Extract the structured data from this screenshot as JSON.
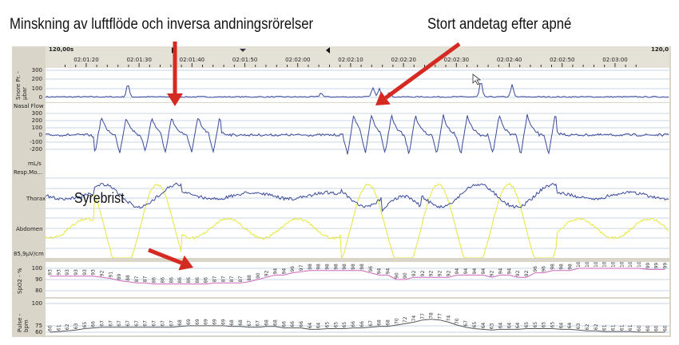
{
  "annotations": {
    "left_title": "Minskning av luftflöde och inversa andningsrörelser",
    "right_title": "Stort andetag efter apné",
    "syrebrist": "Syrebrist"
  },
  "timeline": {
    "window_left": "120,00s",
    "window_right": "120,0",
    "ticks": [
      "02:01:20",
      "02:01:30",
      "02:01:40",
      "02:01:50",
      "02:02:00",
      "02:02:10",
      "02:02:20",
      "02:02:30",
      "02:02:40",
      "02:02:50",
      "02:03:00"
    ]
  },
  "channels": {
    "snore": {
      "label": "Snore Pr. - µbar",
      "axis": [
        "300",
        "200",
        "100",
        "0"
      ]
    },
    "nasal": {
      "label": "Nasal Flow",
      "unit": "mL/s",
      "axis": [
        "300",
        "200",
        "100",
        "0",
        "-100",
        "-200"
      ]
    },
    "resp": {
      "label": "Resp.Mo...",
      "thorax": "Thorax",
      "abdomen": "Abdomen",
      "scale": "85,9µV/cm"
    },
    "spo2": {
      "label": "SpO2 - %",
      "axis": [
        "100",
        "90",
        "80"
      ],
      "values": [
        93,
        93,
        93,
        93,
        93,
        93,
        92,
        91,
        89,
        88,
        87,
        87,
        86,
        86,
        86,
        86,
        86,
        86,
        86,
        87,
        87,
        87,
        87,
        88,
        90,
        92,
        94,
        94,
        96,
        97,
        98,
        98,
        98,
        98,
        98,
        98,
        98,
        96,
        94,
        94,
        90,
        90,
        92,
        92,
        92,
        92,
        92,
        94,
        94,
        94,
        94,
        92,
        94,
        94,
        92,
        92,
        96,
        96,
        98,
        98,
        98,
        100,
        100,
        100,
        100,
        100,
        100,
        100,
        100,
        99,
        99,
        99
      ]
    },
    "pulse": {
      "label": "Pulse - bpm",
      "axis": [
        "100",
        "75",
        "60"
      ],
      "values": [
        60,
        61,
        62,
        63,
        65,
        66,
        67,
        67,
        67,
        67,
        67,
        67,
        67,
        67,
        67,
        68,
        69,
        69,
        69,
        69,
        69,
        68,
        68,
        67,
        67,
        68,
        68,
        66,
        66,
        66,
        64,
        64,
        65,
        65,
        65,
        66,
        66,
        67,
        68,
        68,
        70,
        72,
        74,
        77,
        78,
        77,
        74,
        70,
        67,
        65,
        64,
        63,
        64,
        64,
        64,
        65,
        65,
        65,
        65,
        64,
        64,
        63,
        62,
        62,
        61,
        61,
        61,
        61,
        60,
        60,
        60,
        60
      ]
    }
  },
  "colors": {
    "trace": "#3a4a9a",
    "yellow": "#e6e63a",
    "spo2": "#cc66bb",
    "pulse": "#555555",
    "arrow": "#d42a22",
    "grid": "#c8d4e4"
  }
}
